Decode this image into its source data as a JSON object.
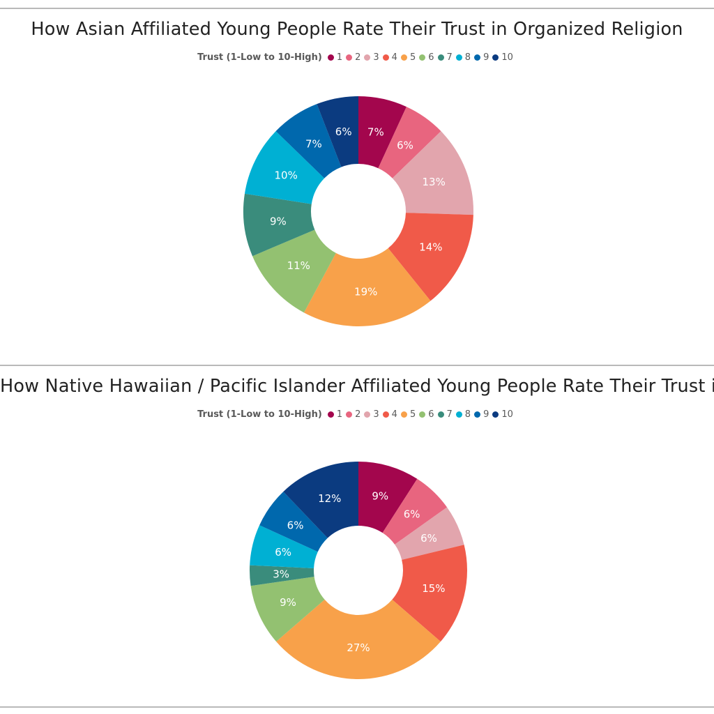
{
  "chart_data": [
    {
      "type": "pie",
      "donut": true,
      "title": "How Asian Affiliated Young People Rate Their Trust in Organized Religion",
      "legend_title": "Trust (1-Low to 10-High)",
      "legend_position": "top",
      "categories": [
        "1",
        "2",
        "3",
        "4",
        "5",
        "6",
        "7",
        "8",
        "9",
        "10"
      ],
      "values": [
        7,
        6,
        13,
        14,
        19,
        11,
        9,
        10,
        7,
        6
      ],
      "labels": [
        "7%",
        "6%",
        "13%",
        "14%",
        "19%",
        "11%",
        "9%",
        "10%",
        "7%",
        "6%"
      ],
      "colors": [
        "#a3064d",
        "#e8657f",
        "#e2a5ad",
        "#f05a49",
        "#f8a14a",
        "#93c171",
        "#3a8c7c",
        "#00b0d3",
        "#0068ad",
        "#0b3b80"
      ]
    },
    {
      "type": "pie",
      "donut": true,
      "title": "How Native Hawaiian / Pacific Islander Affiliated Young People Rate Their Trust in Organized Religion",
      "legend_title": "Trust (1-Low to 10-High)",
      "legend_position": "top",
      "categories": [
        "1",
        "2",
        "3",
        "4",
        "5",
        "6",
        "7",
        "8",
        "9",
        "10"
      ],
      "values": [
        9,
        6,
        6,
        15,
        27,
        9,
        3,
        6,
        6,
        12
      ],
      "labels": [
        "9%",
        "6%",
        "6%",
        "15%",
        "27%",
        "9%",
        "3%",
        "6%",
        "6%",
        "12%"
      ],
      "colors": [
        "#a3064d",
        "#e8657f",
        "#e2a5ad",
        "#f05a49",
        "#f8a14a",
        "#93c171",
        "#3a8c7c",
        "#00b0d3",
        "#0068ad",
        "#0b3b80"
      ]
    }
  ]
}
